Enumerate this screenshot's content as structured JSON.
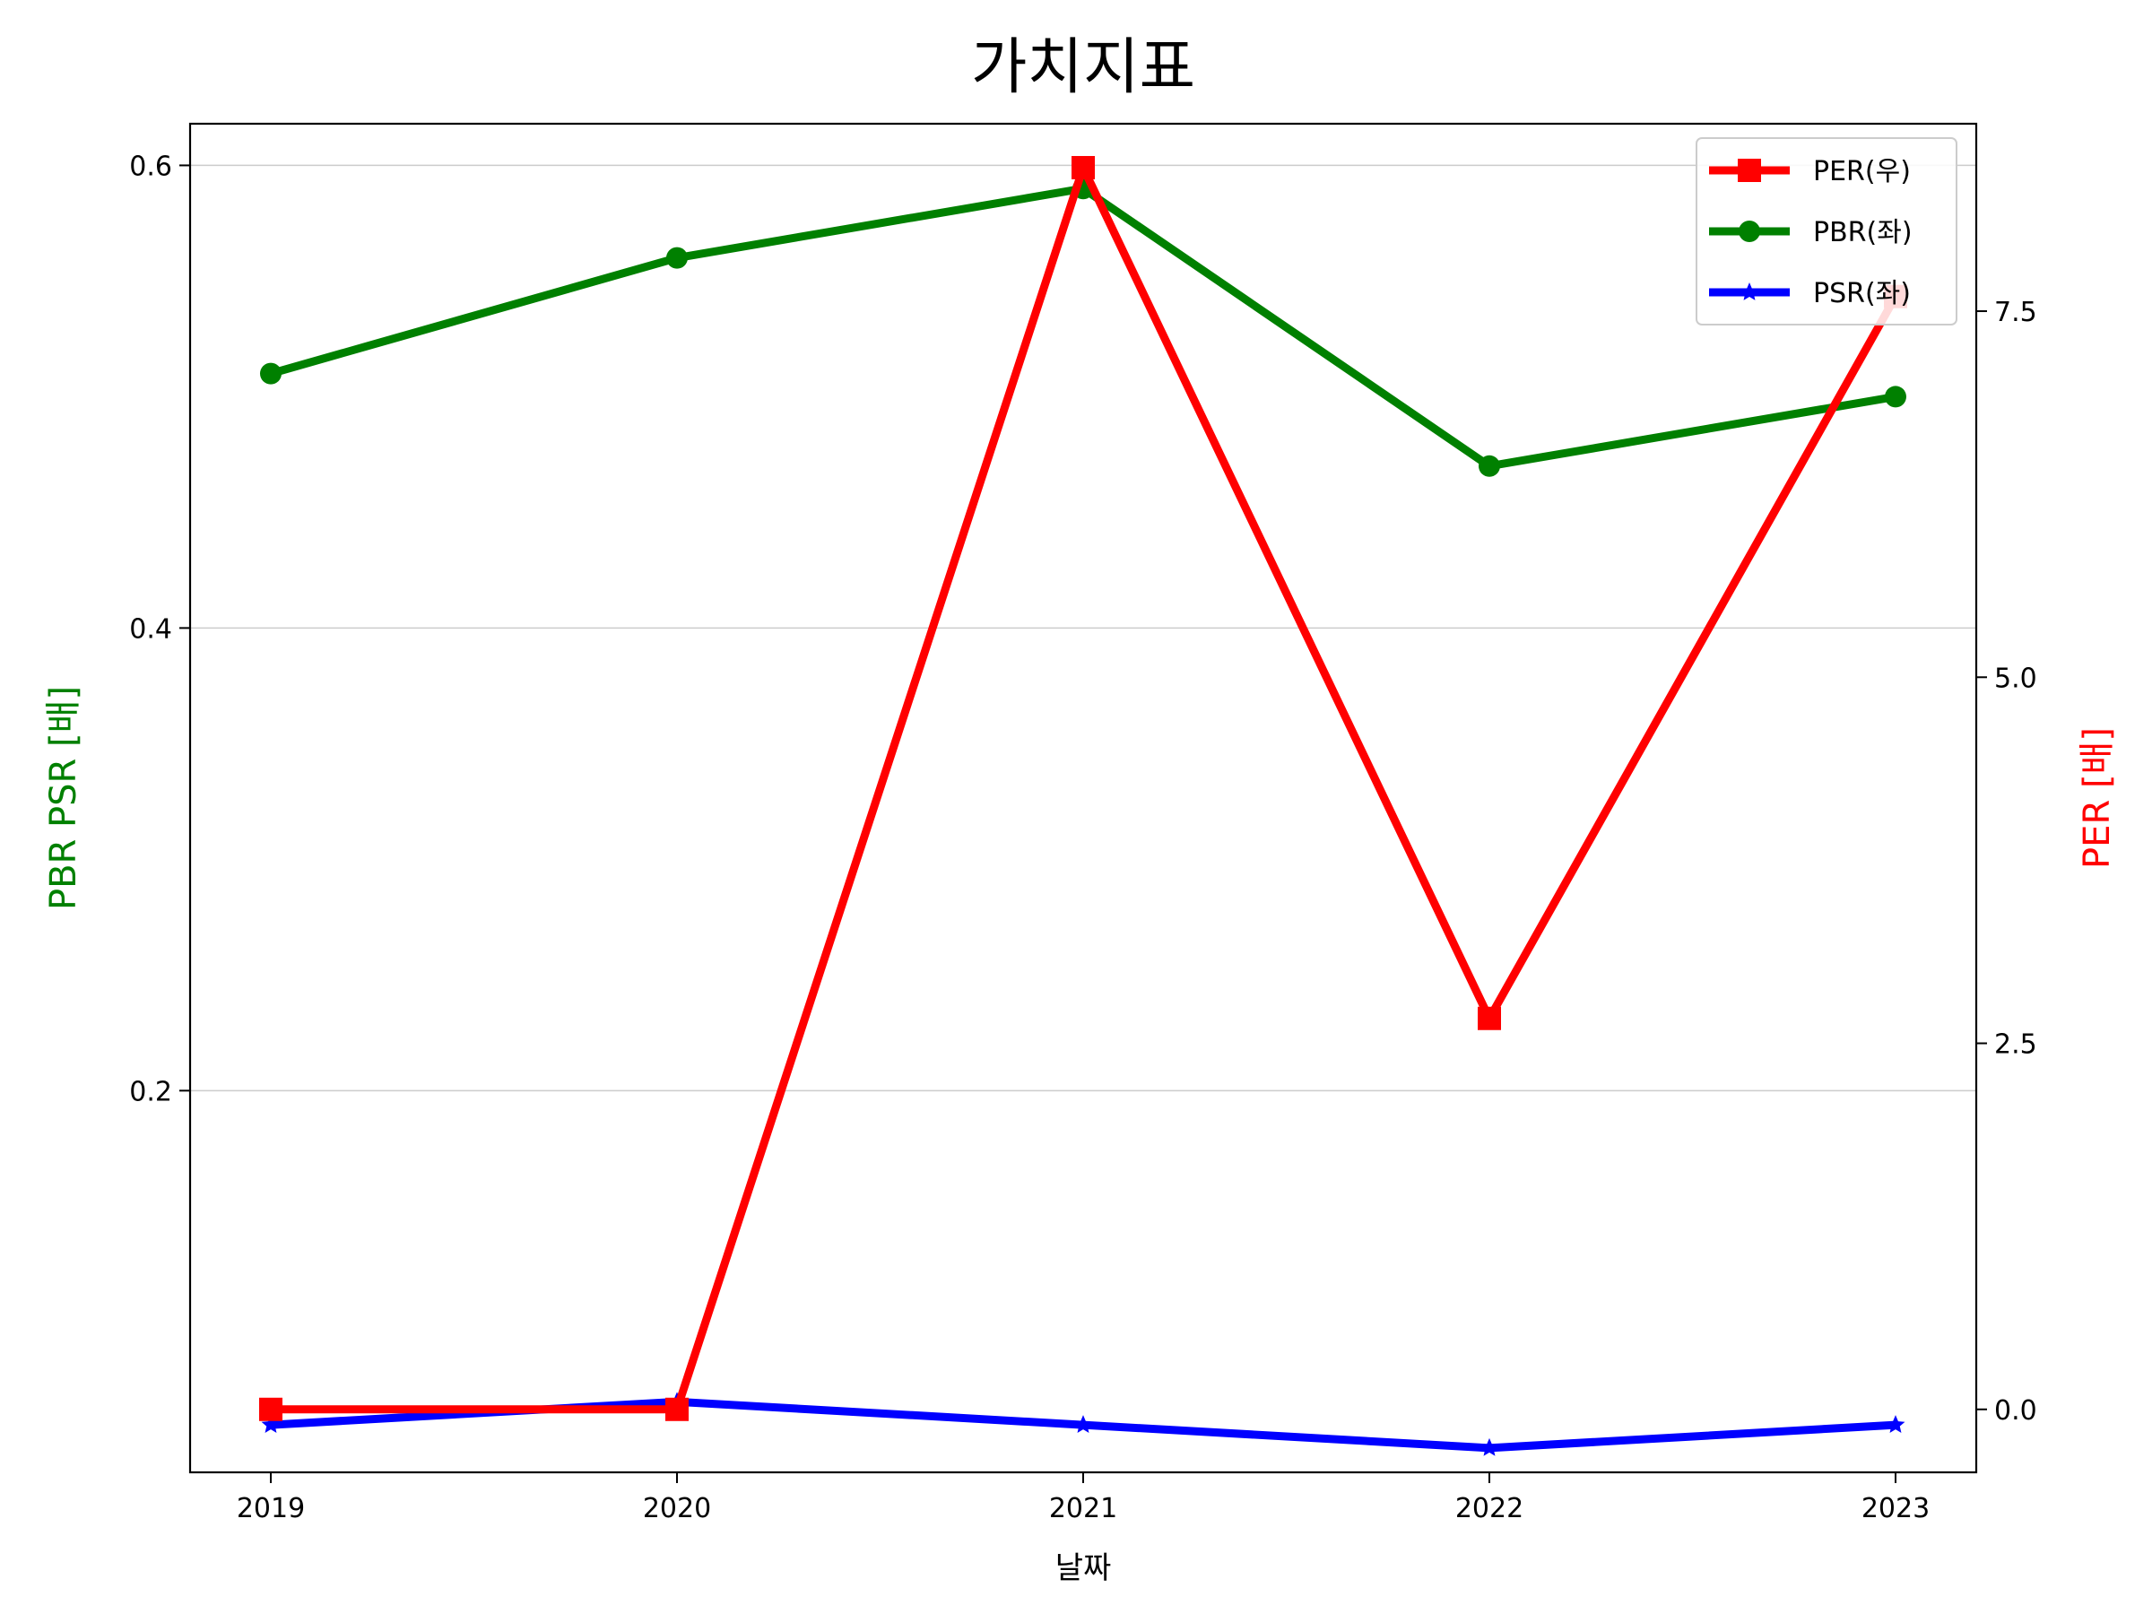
{
  "chart_data": {
    "type": "line",
    "title": "가치지표",
    "xlabel": "날짜",
    "ylabel_left": "PBR PSR [배]",
    "ylabel_right": "PER [배]",
    "categories": [
      "2019",
      "2020",
      "2021",
      "2022",
      "2023"
    ],
    "y_left": {
      "lim": [
        0.035,
        0.618
      ],
      "ticks": [
        0.2,
        0.4,
        0.6
      ],
      "tick_labels": [
        "0.2",
        "0.4",
        "0.6"
      ],
      "grid": true
    },
    "y_right": {
      "lim": [
        -0.43,
        8.78
      ],
      "ticks": [
        0.0,
        2.5,
        5.0,
        7.5
      ],
      "tick_labels": [
        "0.0",
        "2.5",
        "5.0",
        "7.5"
      ]
    },
    "legend_position": "top-right",
    "series": [
      {
        "name": "PER(우)",
        "axis": "right",
        "color": "#ff0000",
        "marker": "square",
        "values": [
          0.0,
          0.0,
          8.48,
          2.67,
          7.6
        ]
      },
      {
        "name": "PBR(좌)",
        "axis": "left",
        "color": "#008000",
        "marker": "circle",
        "values": [
          0.51,
          0.56,
          0.59,
          0.47,
          0.5
        ]
      },
      {
        "name": "PSR(좌)",
        "axis": "left",
        "color": "#0000ff",
        "marker": "star",
        "values": [
          0.0555,
          0.0655,
          0.0555,
          0.0455,
          0.0555
        ]
      }
    ],
    "colors": {
      "left_axis_label": "#008000",
      "right_axis_label": "#ff0000"
    }
  }
}
